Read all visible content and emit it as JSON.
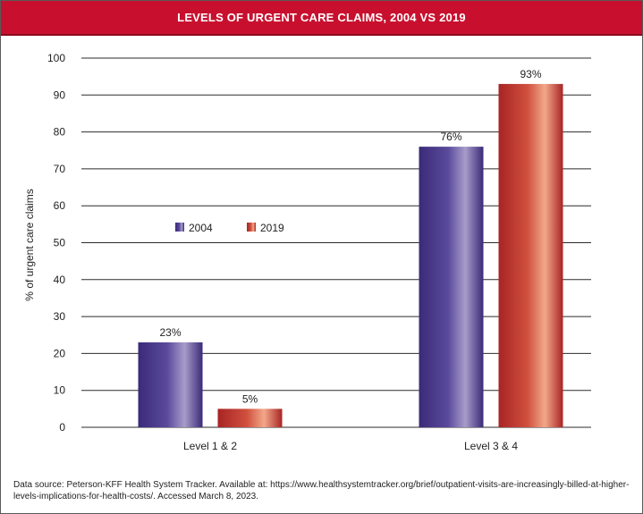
{
  "title": "LEVELS OF URGENT CARE CLAIMS, 2004 VS 2019",
  "source": "Data source: Peterson-KFF Health System Tracker. Available at: https://www.healthsystemtracker.org/brief/outpatient-visits-are-increasingly-billed-at-higher-levels-implications-for-health-costs/. Accessed March 8, 2023.",
  "colors": {
    "title_bg": "#c8102e",
    "series_2004": "#4b3a8c",
    "series_2019": "#c0392b"
  },
  "chart_data": {
    "type": "bar",
    "categories": [
      "Level 1 & 2",
      "Level 3 & 4"
    ],
    "series": [
      {
        "name": "2004",
        "values": [
          23,
          76
        ],
        "labels": [
          "23%",
          "76%"
        ]
      },
      {
        "name": "2019",
        "values": [
          5,
          93
        ],
        "labels": [
          "5%",
          "93%"
        ]
      }
    ],
    "ylabel": "% of urgent care claims",
    "xlabel": "",
    "ylim": [
      0,
      100
    ],
    "yticks": [
      "0",
      "10",
      "20",
      "30",
      "40",
      "50",
      "60",
      "70",
      "80",
      "90",
      "100"
    ],
    "grid": true,
    "legend": "center-left"
  }
}
